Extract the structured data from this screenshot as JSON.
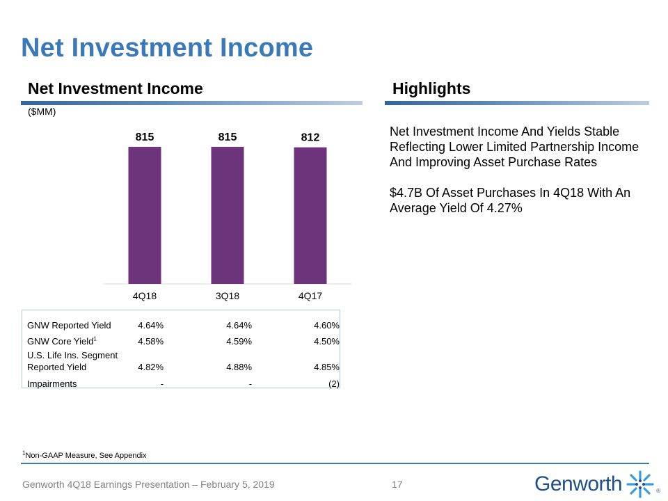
{
  "title": "Net Investment Income",
  "left_section": {
    "heading": "Net Investment Income",
    "units": "($MM)"
  },
  "right_section": {
    "heading": "Highlights",
    "bullets": [
      "Net Investment Income And Yields Stable Reflecting Lower Limited Partnership Income And Improving Asset Purchase Rates",
      "$4.7B Of Asset Purchases In 4Q18 With An Average Yield Of 4.27%"
    ]
  },
  "chart_data": {
    "type": "bar",
    "title": "Net Investment Income",
    "ylabel": "($MM)",
    "categories": [
      "4Q18",
      "3Q18",
      "4Q17"
    ],
    "values": [
      815,
      815,
      812
    ],
    "value_labels": [
      "815",
      "815",
      "812"
    ],
    "ylim": [
      0,
      815
    ],
    "grid": false,
    "color": "#6e347b"
  },
  "metrics_table": {
    "rows": [
      {
        "label": "GNW Reported Yield",
        "sup": "",
        "values": [
          "4.64%",
          "4.64%",
          "4.60%"
        ]
      },
      {
        "label": "GNW Core Yield",
        "sup": "1",
        "values": [
          "4.58%",
          "4.59%",
          "4.50%"
        ]
      },
      {
        "label_line1": "U.S. Life Ins. Segment",
        "label_line2": "Reported Yield",
        "values": [
          "4.82%",
          "4.88%",
          "4.85%"
        ]
      },
      {
        "label": "Impairments",
        "sup": "",
        "values": [
          "-",
          "-",
          "(2)"
        ]
      }
    ]
  },
  "footnote": {
    "sup": "1",
    "text": "Non-GAAP Measure, See Appendix"
  },
  "footer": {
    "text": "Genworth 4Q18 Earnings Presentation – February 5, 2019",
    "page_number": "17",
    "logo_text": "Genworth",
    "logo_mark": "®"
  },
  "colors": {
    "title": "#3a78b8",
    "bar": "#6e347b",
    "logo": "#1f4e8c",
    "rule": "#33669b"
  }
}
